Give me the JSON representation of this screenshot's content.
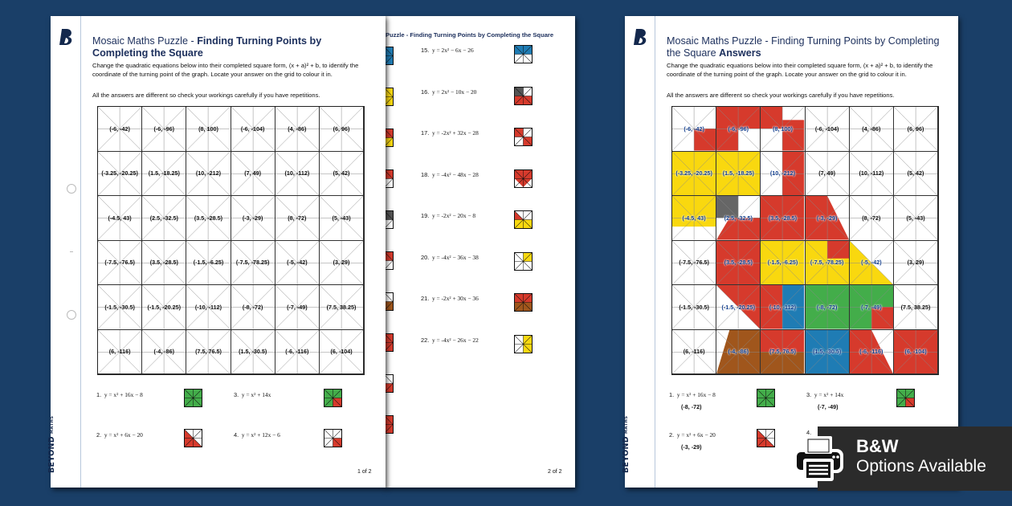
{
  "colors": {
    "background": "#1a3f68",
    "red": "#d63a2c",
    "yellow": "#f9d80f",
    "green": "#43ad4a",
    "blue": "#1f7cb4",
    "grey": "#666666",
    "brown": "#a0561c",
    "title_navy": "#1c2f5c"
  },
  "brand": {
    "name": "BEYOND",
    "sub": "MATHS"
  },
  "worksheet": {
    "title_plain": "Mosaic Maths Puzzle - ",
    "title_bold": "Finding Turning Points by Completing the Square",
    "instructions": "Change the quadratic equations below into their completed square form, (x + a)² + b, to identify the coordinate of the turning point of the graph. Locate your answer on the grid to colour it in.",
    "note": "All the answers are different so check your workings carefully if you have repetitions.",
    "page_label": "1 of 2",
    "grid": [
      [
        "(-6, -42)",
        "(-6, -96)",
        "(8, 100)",
        "(-6, -104)",
        "(4, -86)",
        "(6, 96)"
      ],
      [
        "(-3.25, -20.25)",
        "(1.5, -18.25)",
        "(10, -212)",
        "(7, 49)",
        "(10, -112)",
        "(5, 42)"
      ],
      [
        "(-4.5, 43)",
        "(2.5, -32.5)",
        "(3.5, -28.5)",
        "(-3, -29)",
        "(8, -72)",
        "(5, -43)"
      ],
      [
        "(-7.5, -76.5)",
        "(3.5, -28.5)",
        "(-1.5, -6.25)",
        "(-7.5, -78.25)",
        "(-5, -42)",
        "(3, 29)"
      ],
      [
        "(-1.5, -30.5)",
        "(-1.5, -20.25)",
        "(-10, -112)",
        "(-8, -72)",
        "(-7, -49)",
        "(7.5, 38.25)"
      ],
      [
        "(6, -116)",
        "(-4, -86)",
        "(7.5, 76.5)",
        "(1.5, -30.5)",
        "(-6, -116)",
        "(6, -104)"
      ]
    ],
    "questions": [
      {
        "num": "1.",
        "eq": "y = x² + 16x − 8",
        "tile": "green-full"
      },
      {
        "num": "2.",
        "eq": "y = x² + 6x − 20",
        "tile": "red-bl-half"
      },
      {
        "num": "3.",
        "eq": "y = x² + 14x",
        "tile": "green-red-br"
      },
      {
        "num": "4.",
        "eq": "y = x² + 12x − 6",
        "tile": "red-br"
      }
    ]
  },
  "page2": {
    "header": "Puzzle - Finding Turning Points by Completing the Square",
    "page_label": "2 of 2",
    "questions": [
      {
        "num": "15.",
        "eq": "y = 2x² − 6x − 26"
      },
      {
        "num": "16.",
        "eq": "y = 2x² − 10x − 20"
      },
      {
        "num": "17.",
        "eq": "y = -2x² + 32x − 28"
      },
      {
        "num": "18.",
        "eq": "y = -4x² − 48x − 28"
      },
      {
        "num": "19.",
        "eq": "y = -2x² − 20x − 8"
      },
      {
        "num": "20.",
        "eq": "y = -4x² − 36x − 38"
      },
      {
        "num": "21.",
        "eq": "y = -2x² + 30x − 36"
      },
      {
        "num": "22.",
        "eq": "y = -4x² − 26x − 22"
      }
    ]
  },
  "answers": {
    "title_plain": "Mosaic Maths Puzzle - Finding Turning Points by Completing the Square ",
    "title_bold": "Answers",
    "instructions": "Change the quadratic equations below into their completed square form, (x + a)² + b, to identify the coordinate of the turning point of the graph. Locate your answer on the grid to colour it in.",
    "note": "All the answers are different so check your workings carefully if you have repetitions.",
    "questions": [
      {
        "num": "1.",
        "eq": "y = x² + 16x − 8",
        "answer": "(-8, -72)"
      },
      {
        "num": "2.",
        "eq": "y = x² + 6x − 20",
        "answer": "(-3, -29)"
      },
      {
        "num": "3.",
        "eq": "y = x² + 14x",
        "answer": "(-7, -49)"
      },
      {
        "num": "4.",
        "eq": ""
      }
    ]
  },
  "banner": {
    "line1": "B&W",
    "line2": "Options Available",
    "icon": "printer-icon"
  }
}
